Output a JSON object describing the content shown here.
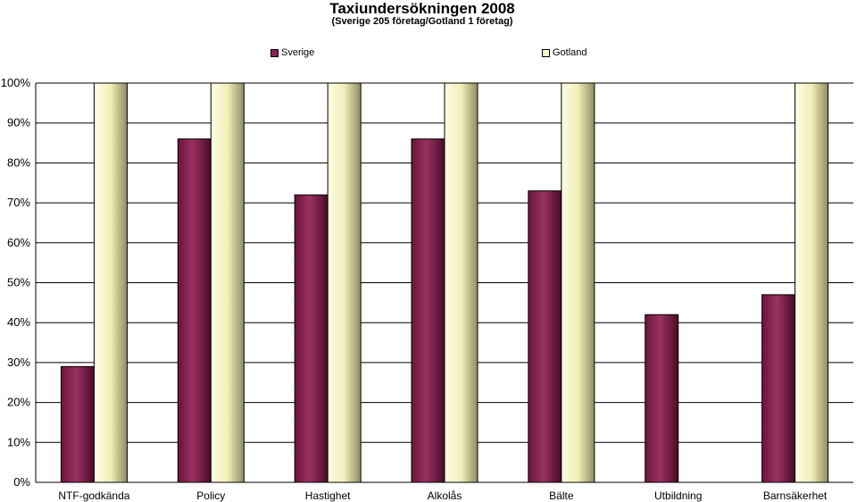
{
  "chart_data": {
    "type": "bar",
    "title": "Taxiundersökningen 2008",
    "subtitle": "(Sverige 205 företag/Gotland 1 företag)",
    "categories": [
      "NTF-godkända",
      "Policy",
      "Hastighet",
      "Alkolås",
      "Bälte",
      "Utbildning",
      "Barnsäkerhet"
    ],
    "series": [
      {
        "name": "Sverige",
        "values": [
          29,
          86,
          72,
          86,
          73,
          42,
          47
        ],
        "color": "#8b2252"
      },
      {
        "name": "Gotland",
        "values": [
          100,
          100,
          100,
          100,
          100,
          0,
          100
        ],
        "color": "#ffffcc"
      }
    ],
    "ylim": [
      0,
      100
    ],
    "yticks": [
      "0%",
      "10%",
      "20%",
      "30%",
      "40%",
      "50%",
      "60%",
      "70%",
      "80%",
      "90%",
      "100%"
    ],
    "xlabel": "",
    "ylabel": "",
    "grid": true,
    "legend_position": "top"
  }
}
